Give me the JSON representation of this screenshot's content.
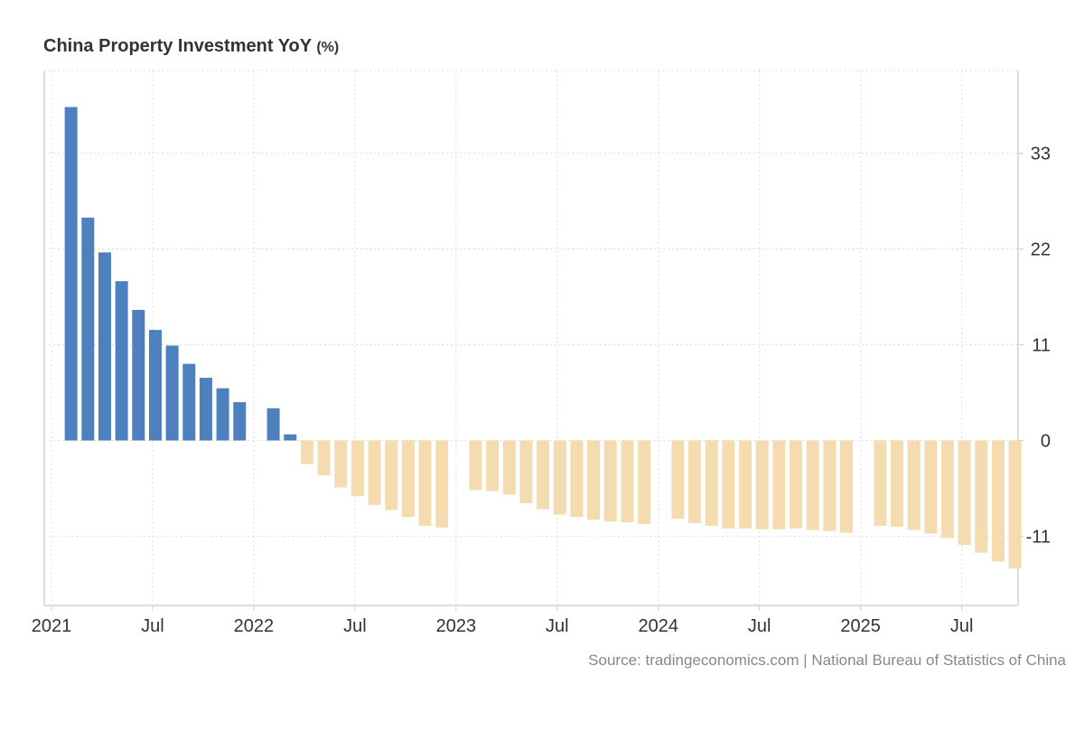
{
  "chart_data": {
    "type": "bar",
    "title": "China Property Investment YoY",
    "unit": "(%)",
    "source": "Source: tradingeconomics.com | National Bureau of Statistics of China",
    "xlabel": "",
    "ylabel": "",
    "ylim": [
      -18.95,
      42.5
    ],
    "yticks": [
      -11,
      0,
      11,
      22,
      33
    ],
    "ytick_labels": [
      "-11",
      "0",
      "11",
      "22",
      "33"
    ],
    "xticks": [
      {
        "label": "2021",
        "year": 2021,
        "month": 1
      },
      {
        "label": "Jul",
        "year": 2021,
        "month": 7
      },
      {
        "label": "2022",
        "year": 2022,
        "month": 1
      },
      {
        "label": "Jul",
        "year": 2022,
        "month": 7
      },
      {
        "label": "2023",
        "year": 2023,
        "month": 1
      },
      {
        "label": "Jul",
        "year": 2023,
        "month": 7
      },
      {
        "label": "2024",
        "year": 2024,
        "month": 1
      },
      {
        "label": "Jul",
        "year": 2024,
        "month": 7
      },
      {
        "label": "2025",
        "year": 2025,
        "month": 1
      },
      {
        "label": "Jul",
        "year": 2025,
        "month": 7
      }
    ],
    "grid": true,
    "colors": {
      "positive": "#4e80bd",
      "negative": "#f4dcb0"
    },
    "series": [
      {
        "name": "China Property Investment YoY",
        "points": [
          [
            "2021-02",
            38.3
          ],
          [
            "2021-03",
            25.6
          ],
          [
            "2021-04",
            21.6
          ],
          [
            "2021-05",
            18.3
          ],
          [
            "2021-06",
            15.0
          ],
          [
            "2021-07",
            12.7
          ],
          [
            "2021-08",
            10.9
          ],
          [
            "2021-09",
            8.8
          ],
          [
            "2021-10",
            7.2
          ],
          [
            "2021-11",
            6.0
          ],
          [
            "2021-12",
            4.4
          ],
          [
            "2022-02",
            3.7
          ],
          [
            "2022-03",
            0.7
          ],
          [
            "2022-04",
            -2.7
          ],
          [
            "2022-05",
            -4.0
          ],
          [
            "2022-06",
            -5.4
          ],
          [
            "2022-07",
            -6.4
          ],
          [
            "2022-08",
            -7.4
          ],
          [
            "2022-09",
            -8.0
          ],
          [
            "2022-10",
            -8.8
          ],
          [
            "2022-11",
            -9.8
          ],
          [
            "2022-12",
            -10.0
          ],
          [
            "2023-02",
            -5.7
          ],
          [
            "2023-03",
            -5.8
          ],
          [
            "2023-04",
            -6.2
          ],
          [
            "2023-05",
            -7.2
          ],
          [
            "2023-06",
            -7.9
          ],
          [
            "2023-07",
            -8.5
          ],
          [
            "2023-08",
            -8.8
          ],
          [
            "2023-09",
            -9.1
          ],
          [
            "2023-10",
            -9.3
          ],
          [
            "2023-11",
            -9.4
          ],
          [
            "2023-12",
            -9.6
          ],
          [
            "2024-02",
            -9.0
          ],
          [
            "2024-03",
            -9.5
          ],
          [
            "2024-04",
            -9.8
          ],
          [
            "2024-05",
            -10.1
          ],
          [
            "2024-06",
            -10.1
          ],
          [
            "2024-07",
            -10.2
          ],
          [
            "2024-08",
            -10.2
          ],
          [
            "2024-09",
            -10.1
          ],
          [
            "2024-10",
            -10.3
          ],
          [
            "2024-11",
            -10.4
          ],
          [
            "2024-12",
            -10.6
          ],
          [
            "2025-02",
            -9.8
          ],
          [
            "2025-03",
            -9.9
          ],
          [
            "2025-04",
            -10.3
          ],
          [
            "2025-05",
            -10.7
          ],
          [
            "2025-06",
            -11.2
          ],
          [
            "2025-07",
            -12.0
          ],
          [
            "2025-08",
            -12.9
          ],
          [
            "2025-09",
            -13.9
          ],
          [
            "2025-10",
            -14.7
          ]
        ]
      }
    ]
  }
}
